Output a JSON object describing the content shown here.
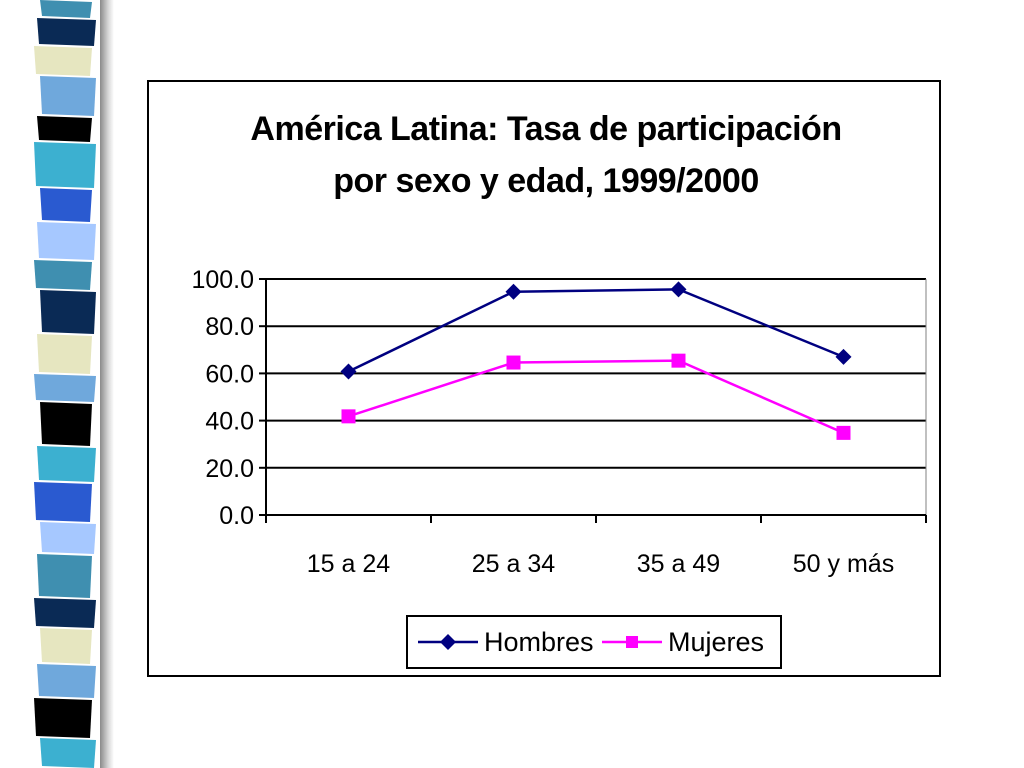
{
  "chart_data": {
    "type": "line",
    "title": [
      "América Latina: Tasa de participación",
      "por sexo y edad, 1999/2000"
    ],
    "categories": [
      "15 a 24",
      "25 a 34",
      "35 a 49",
      "50 y más"
    ],
    "series": [
      {
        "name": "Hombres",
        "values": [
          60.8,
          94.6,
          95.6,
          67.0
        ],
        "color": "#000080",
        "marker": "diamond"
      },
      {
        "name": "Mujeres",
        "values": [
          41.8,
          64.6,
          65.4,
          34.8
        ],
        "color": "#FF00FF",
        "marker": "square"
      }
    ],
    "ylim": [
      0,
      100
    ],
    "yticks": [
      "0.0",
      "20.0",
      "40.0",
      "60.0",
      "80.0",
      "100.0"
    ],
    "grid": true,
    "legend_position": "bottom"
  },
  "theme": {
    "stripe_colors": [
      "#3f8fb0",
      "#0a2a55",
      "#e6e6c0",
      "#6fa8dc",
      "#000000",
      "#3cb0d0",
      "#2a5ad0",
      "#a6c8ff"
    ]
  }
}
